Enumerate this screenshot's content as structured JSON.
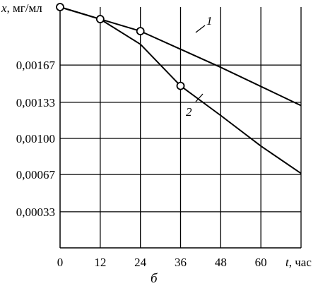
{
  "chart_data": {
    "type": "line",
    "caption": "б",
    "xlabel": {
      "symbol": "t",
      "unit": ", час"
    },
    "ylabel": {
      "symbol": "x",
      "unit": ", мг/мл"
    },
    "xlim": [
      0,
      72
    ],
    "ylim": [
      0,
      0.0022
    ],
    "xticks": [
      {
        "value": 0,
        "label": "0"
      },
      {
        "value": 12,
        "label": "12"
      },
      {
        "value": 24,
        "label": "24"
      },
      {
        "value": 36,
        "label": "36"
      },
      {
        "value": 48,
        "label": "48"
      },
      {
        "value": 60,
        "label": "60"
      }
    ],
    "yticks": [
      {
        "value": 0.00033,
        "label": "0,00033"
      },
      {
        "value": 0.00067,
        "label": "0,00067"
      },
      {
        "value": 0.001,
        "label": "0,00100"
      },
      {
        "value": 0.00133,
        "label": "0,00133"
      },
      {
        "value": 0.00167,
        "label": "0,00167"
      }
    ],
    "grid": true,
    "series": [
      {
        "name": "1",
        "points": [
          [
            0,
            0.0022
          ],
          [
            12,
            0.00209
          ],
          [
            24,
            0.00198
          ],
          [
            48,
            0.00165
          ],
          [
            72,
            0.0013
          ]
        ],
        "markers": [
          [
            0,
            0.0022
          ],
          [
            12,
            0.00209
          ],
          [
            24,
            0.00198
          ]
        ]
      },
      {
        "name": "2",
        "points": [
          [
            0,
            0.0022
          ],
          [
            12,
            0.00209
          ],
          [
            24,
            0.00186
          ],
          [
            36,
            0.00148
          ],
          [
            48,
            0.00121
          ],
          [
            60,
            0.00093
          ],
          [
            72,
            0.00068
          ]
        ],
        "markers": [
          [
            36,
            0.00148
          ]
        ]
      }
    ]
  }
}
